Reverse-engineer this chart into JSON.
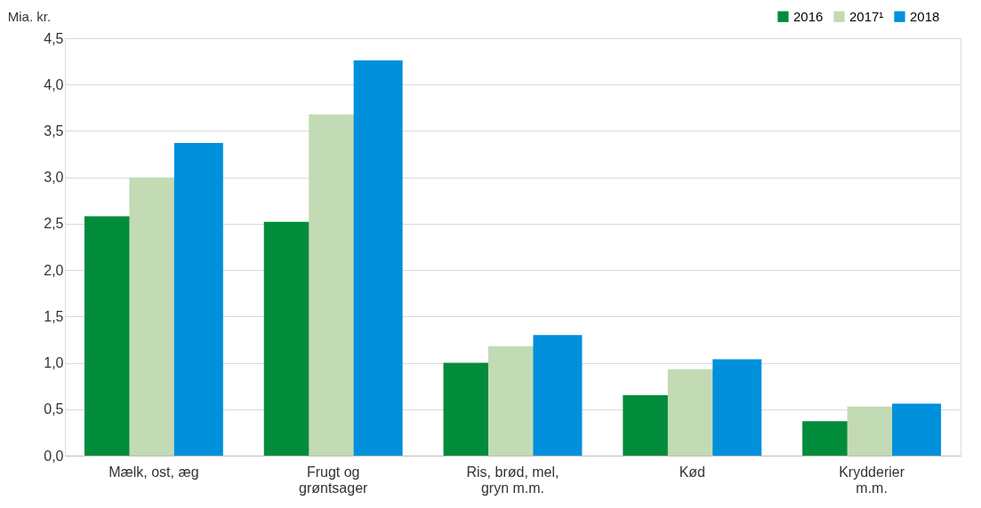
{
  "chart_data": {
    "type": "bar",
    "ylabel": "Mia. kr.",
    "categories": [
      "Mælk, ost, æg",
      "Frugt og\ngrøntsager",
      "Ris, brød, mel,\ngryn m.m.",
      "Kød",
      "Krydderier\nm.m."
    ],
    "series": [
      {
        "name": "2016",
        "color": "#008c3a",
        "values": [
          2.58,
          2.52,
          1.0,
          0.65,
          0.37
        ]
      },
      {
        "name": "2017¹",
        "color": "#c2dbb4",
        "values": [
          3.0,
          3.68,
          1.18,
          0.93,
          0.53
        ]
      },
      {
        "name": "2018",
        "color": "#0090dc",
        "values": [
          3.37,
          4.26,
          1.3,
          1.04,
          0.56
        ]
      }
    ],
    "ylim": [
      0,
      4.5
    ],
    "yticks": [
      {
        "value": 0,
        "label": "0,0"
      },
      {
        "value": 0.5,
        "label": "0,5"
      },
      {
        "value": 1,
        "label": "1,0"
      },
      {
        "value": 1.5,
        "label": "1,5"
      },
      {
        "value": 2,
        "label": "2,0"
      },
      {
        "value": 2.5,
        "label": "2,5"
      },
      {
        "value": 3,
        "label": "3,0"
      },
      {
        "value": 3.5,
        "label": "3,5"
      },
      {
        "value": 4,
        "label": "4,0"
      },
      {
        "value": 4.5,
        "label": "4,5"
      }
    ],
    "grid": "y",
    "legend": "top right"
  }
}
